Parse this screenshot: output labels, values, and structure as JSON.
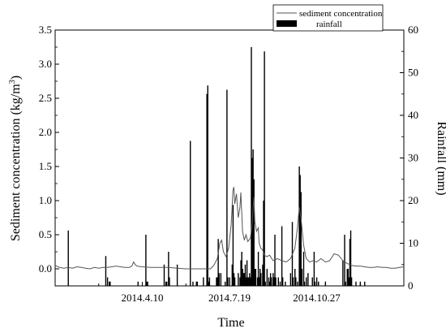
{
  "chart_data": {
    "type": "line+bar",
    "title": "",
    "xlabel": "Time",
    "ylabel_left": "Sediment concentration (kg/m",
    "ylabel_left_sup": "3",
    "ylabel_left_end": ")",
    "ylabel_right": "Rainfall (mm)",
    "x_tick_labels": [
      "2014.4.10",
      "2014.7.19",
      "2014.10.27"
    ],
    "x_ticks_day": [
      100,
      200,
      300
    ],
    "xlim_day": [
      0,
      400
    ],
    "y_left": {
      "ylim": [
        -0.25,
        3.5
      ],
      "ticks": [
        "0.0",
        "0.5",
        "1.0",
        "1.5",
        "2.0",
        "2.5",
        "3.0",
        "3.5"
      ]
    },
    "y_right": {
      "ylim": [
        0,
        60
      ],
      "ticks": [
        "0",
        "10",
        "20",
        "30",
        "40",
        "50",
        "60"
      ]
    },
    "legend": {
      "placement": "top-right",
      "entries": [
        "sediment concentration",
        "rainfall"
      ]
    },
    "grid": false,
    "series": [
      {
        "name": "sediment concentration",
        "axis": "left",
        "kind": "line",
        "color": "#555555",
        "points": [
          [
            0,
            0.05
          ],
          [
            5,
            0.02
          ],
          [
            10,
            0.01
          ],
          [
            15,
            0.02
          ],
          [
            20,
            0.01
          ],
          [
            25,
            0.03
          ],
          [
            30,
            0.02
          ],
          [
            35,
            0.01
          ],
          [
            40,
            0.0
          ],
          [
            45,
            0.02
          ],
          [
            50,
            0.01
          ],
          [
            55,
            0.02
          ],
          [
            60,
            0.02
          ],
          [
            65,
            0.03
          ],
          [
            70,
            0.04
          ],
          [
            75,
            0.03
          ],
          [
            80,
            0.02
          ],
          [
            85,
            0.02
          ],
          [
            88,
            0.04
          ],
          [
            90,
            0.1
          ],
          [
            92,
            0.06
          ],
          [
            94,
            0.04
          ],
          [
            100,
            0.03
          ],
          [
            110,
            0.02
          ],
          [
            120,
            0.02
          ],
          [
            130,
            0.02
          ],
          [
            140,
            0.01
          ],
          [
            150,
            0.0
          ],
          [
            160,
            0.0
          ],
          [
            170,
            0.0
          ],
          [
            178,
            0.0
          ],
          [
            182,
            0.05
          ],
          [
            186,
            0.15
          ],
          [
            189,
            0.38
          ],
          [
            191,
            0.42
          ],
          [
            193,
            0.25
          ],
          [
            196,
            0.18
          ],
          [
            199,
            0.3
          ],
          [
            202,
            0.65
          ],
          [
            204,
            1.15
          ],
          [
            205,
            1.2
          ],
          [
            206,
            0.95
          ],
          [
            208,
            1.1
          ],
          [
            210,
            0.75
          ],
          [
            212,
            0.9
          ],
          [
            213,
            1.12
          ],
          [
            215,
            0.55
          ],
          [
            217,
            0.42
          ],
          [
            219,
            0.5
          ],
          [
            221,
            0.4
          ],
          [
            224,
            0.45
          ],
          [
            226,
            0.65
          ],
          [
            227,
            0.88
          ],
          [
            228,
            1.05
          ],
          [
            229,
            0.7
          ],
          [
            231,
            0.55
          ],
          [
            233,
            0.6
          ],
          [
            234,
            0.38
          ],
          [
            236,
            0.3
          ],
          [
            238,
            0.28
          ],
          [
            240,
            0.2
          ],
          [
            243,
            0.18
          ],
          [
            246,
            0.2
          ],
          [
            250,
            0.12
          ],
          [
            255,
            0.15
          ],
          [
            260,
            0.12
          ],
          [
            265,
            0.1
          ],
          [
            270,
            0.15
          ],
          [
            275,
            0.3
          ],
          [
            278,
            0.6
          ],
          [
            280,
            0.9
          ],
          [
            282,
            0.75
          ],
          [
            285,
            0.35
          ],
          [
            288,
            0.15
          ],
          [
            292,
            0.1
          ],
          [
            296,
            0.12
          ],
          [
            300,
            0.1
          ],
          [
            305,
            0.15
          ],
          [
            310,
            0.1
          ],
          [
            315,
            0.12
          ],
          [
            320,
            0.22
          ],
          [
            325,
            0.2
          ],
          [
            330,
            0.12
          ],
          [
            335,
            0.08
          ],
          [
            340,
            0.05
          ],
          [
            345,
            0.04
          ],
          [
            350,
            0.04
          ],
          [
            355,
            0.03
          ],
          [
            360,
            0.02
          ],
          [
            365,
            0.02
          ],
          [
            370,
            0.03
          ],
          [
            375,
            0.02
          ],
          [
            380,
            0.02
          ],
          [
            385,
            0.01
          ],
          [
            390,
            0.01
          ],
          [
            395,
            0.02
          ],
          [
            400,
            0.03
          ]
        ]
      },
      {
        "name": "rainfall",
        "axis": "right",
        "kind": "bar",
        "color": "#000000",
        "points": [
          [
            15,
            13
          ],
          [
            58,
            7
          ],
          [
            60,
            2
          ],
          [
            62,
            1
          ],
          [
            63,
            1
          ],
          [
            95,
            1
          ],
          [
            104,
            12
          ],
          [
            105,
            1
          ],
          [
            106,
            1
          ],
          [
            125,
            5
          ],
          [
            127,
            1
          ],
          [
            128,
            1
          ],
          [
            130,
            8
          ],
          [
            131,
            2
          ],
          [
            140,
            5
          ],
          [
            155,
            34
          ],
          [
            158,
            1
          ],
          [
            162,
            1
          ],
          [
            163,
            1
          ],
          [
            170,
            2
          ],
          [
            174,
            45
          ],
          [
            175,
            47
          ],
          [
            176,
            1
          ],
          [
            177,
            2
          ],
          [
            185,
            2
          ],
          [
            186,
            2
          ],
          [
            187,
            11
          ],
          [
            188,
            3
          ],
          [
            190,
            3
          ],
          [
            195,
            1
          ],
          [
            197,
            46
          ],
          [
            198,
            2
          ],
          [
            200,
            2
          ],
          [
            203,
            5
          ],
          [
            204,
            19
          ],
          [
            205,
            3
          ],
          [
            206,
            2
          ],
          [
            210,
            3
          ],
          [
            212,
            2
          ],
          [
            213,
            6
          ],
          [
            214,
            8
          ],
          [
            215,
            4
          ],
          [
            216,
            3
          ],
          [
            217,
            3
          ],
          [
            218,
            5
          ],
          [
            219,
            2
          ],
          [
            220,
            6
          ],
          [
            221,
            2
          ],
          [
            222,
            2
          ],
          [
            223,
            3
          ],
          [
            224,
            2
          ],
          [
            225,
            56
          ],
          [
            226,
            30
          ],
          [
            227,
            32
          ],
          [
            228,
            25
          ],
          [
            229,
            4
          ],
          [
            230,
            4
          ],
          [
            232,
            2
          ],
          [
            233,
            8
          ],
          [
            234,
            2
          ],
          [
            235,
            4
          ],
          [
            236,
            3
          ],
          [
            238,
            5
          ],
          [
            239,
            20
          ],
          [
            240,
            55
          ],
          [
            241,
            1
          ],
          [
            243,
            4
          ],
          [
            245,
            2
          ],
          [
            246,
            1
          ],
          [
            247,
            3
          ],
          [
            248,
            2
          ],
          [
            250,
            3
          ],
          [
            251,
            2
          ],
          [
            252,
            12
          ],
          [
            253,
            2
          ],
          [
            256,
            2
          ],
          [
            258,
            1
          ],
          [
            260,
            14
          ],
          [
            261,
            2
          ],
          [
            264,
            1
          ],
          [
            270,
            3
          ],
          [
            272,
            15
          ],
          [
            273,
            2
          ],
          [
            275,
            4
          ],
          [
            276,
            2
          ],
          [
            278,
            1
          ],
          [
            280,
            28
          ],
          [
            281,
            26
          ],
          [
            282,
            22
          ],
          [
            283,
            4
          ],
          [
            285,
            8
          ],
          [
            286,
            1
          ],
          [
            288,
            2
          ],
          [
            290,
            3
          ],
          [
            295,
            2
          ],
          [
            297,
            8
          ],
          [
            298,
            1
          ],
          [
            300,
            2
          ],
          [
            302,
            1
          ],
          [
            310,
            1
          ],
          [
            330,
            6
          ],
          [
            332,
            12
          ],
          [
            333,
            1
          ],
          [
            335,
            4
          ],
          [
            336,
            4
          ],
          [
            337,
            2
          ],
          [
            338,
            11
          ],
          [
            339,
            13
          ],
          [
            340,
            2
          ],
          [
            345,
            1
          ],
          [
            350,
            1
          ],
          [
            355,
            1
          ]
        ]
      }
    ]
  }
}
